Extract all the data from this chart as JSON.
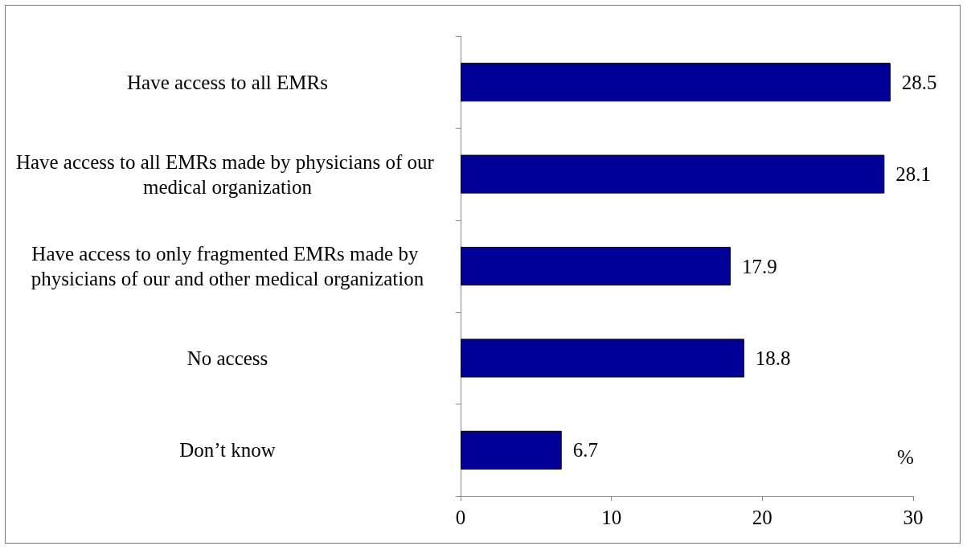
{
  "chart_data": {
    "type": "bar",
    "orientation": "horizontal",
    "xlabel": "%",
    "categories": [
      "Have access to all EMRs",
      "Have access to all EMRs made by physicians of our medical organization",
      "Have access to only fragmented EMRs made by physicians of our and other medical organization",
      "No access",
      "Don’t know"
    ],
    "values": [
      28.5,
      28.1,
      17.9,
      18.8,
      6.7
    ],
    "color": "#000099",
    "xlim": [
      0,
      30
    ],
    "xticks": [
      0,
      10,
      20,
      30
    ],
    "data_labels": true,
    "grid": false
  }
}
